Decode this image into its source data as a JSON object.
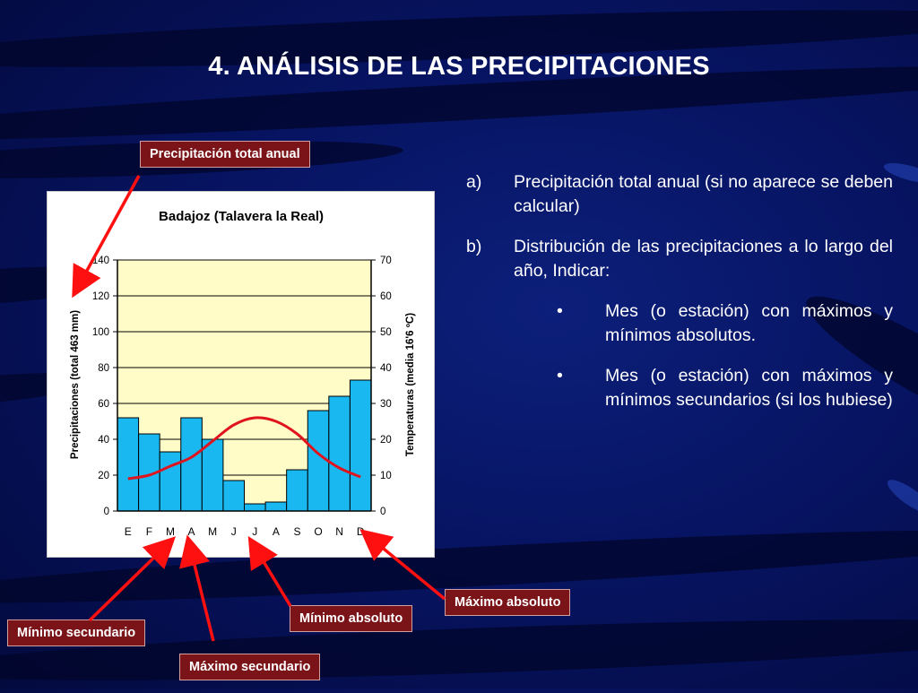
{
  "slide": {
    "title": "4. ANÁLISIS DE LAS PRECIPITACIONES"
  },
  "callouts": {
    "total": "Precipitación total anual",
    "max_abs": "Máximo absoluto",
    "min_abs": "Mínimo absoluto",
    "min_sec": "Mínimo secundario",
    "max_sec": "Máximo secundario"
  },
  "bullets": {
    "a_marker": "a)",
    "a_text": "Precipitación total anual (si no aparece se deben calcular)",
    "b_marker": "b)",
    "b_text": "Distribución de las precipitaciones a lo largo del año, Indicar:",
    "sub_marker": "•",
    "sub1_text": "Mes (o estación) con máximos y mínimos absolutos.",
    "sub2_text": "Mes (o estación) con máximos y mínimos secundarios (si los hubiese)"
  },
  "colors": {
    "bar": "#19b8f0",
    "temp_line": "#e0141e",
    "plot_bg": "#fffcc8",
    "callout_bg": "#7a1418",
    "arrow": "#ff1010"
  },
  "chart_data": {
    "type": "bar",
    "title": "Badajoz (Talavera la Real)",
    "categories": [
      "E",
      "F",
      "M",
      "A",
      "M",
      "J",
      "J",
      "A",
      "S",
      "O",
      "N",
      "D"
    ],
    "series": [
      {
        "values": [
          52,
          43,
          33,
          52,
          40,
          17,
          4,
          5,
          23,
          56,
          64,
          73
        ]
      }
    ],
    "ylabel": "Precipitaciones (total 463 mm)",
    "ylim": [
      0,
      140
    ],
    "yticks": [
      "0",
      "20",
      "40",
      "60",
      "80",
      "100",
      "120",
      "140"
    ],
    "y2label": "Temperaturas (media 16'6 ºC)",
    "y2lim": [
      0,
      70
    ],
    "y2ticks": [
      "0",
      "10",
      "20",
      "30",
      "40",
      "50",
      "60",
      "70"
    ],
    "line_series": {
      "type": "line",
      "axis": "y2",
      "values": [
        9,
        10,
        12.5,
        15,
        19.5,
        24,
        26,
        25,
        21.5,
        16,
        12,
        9.5
      ]
    },
    "grid": true
  }
}
